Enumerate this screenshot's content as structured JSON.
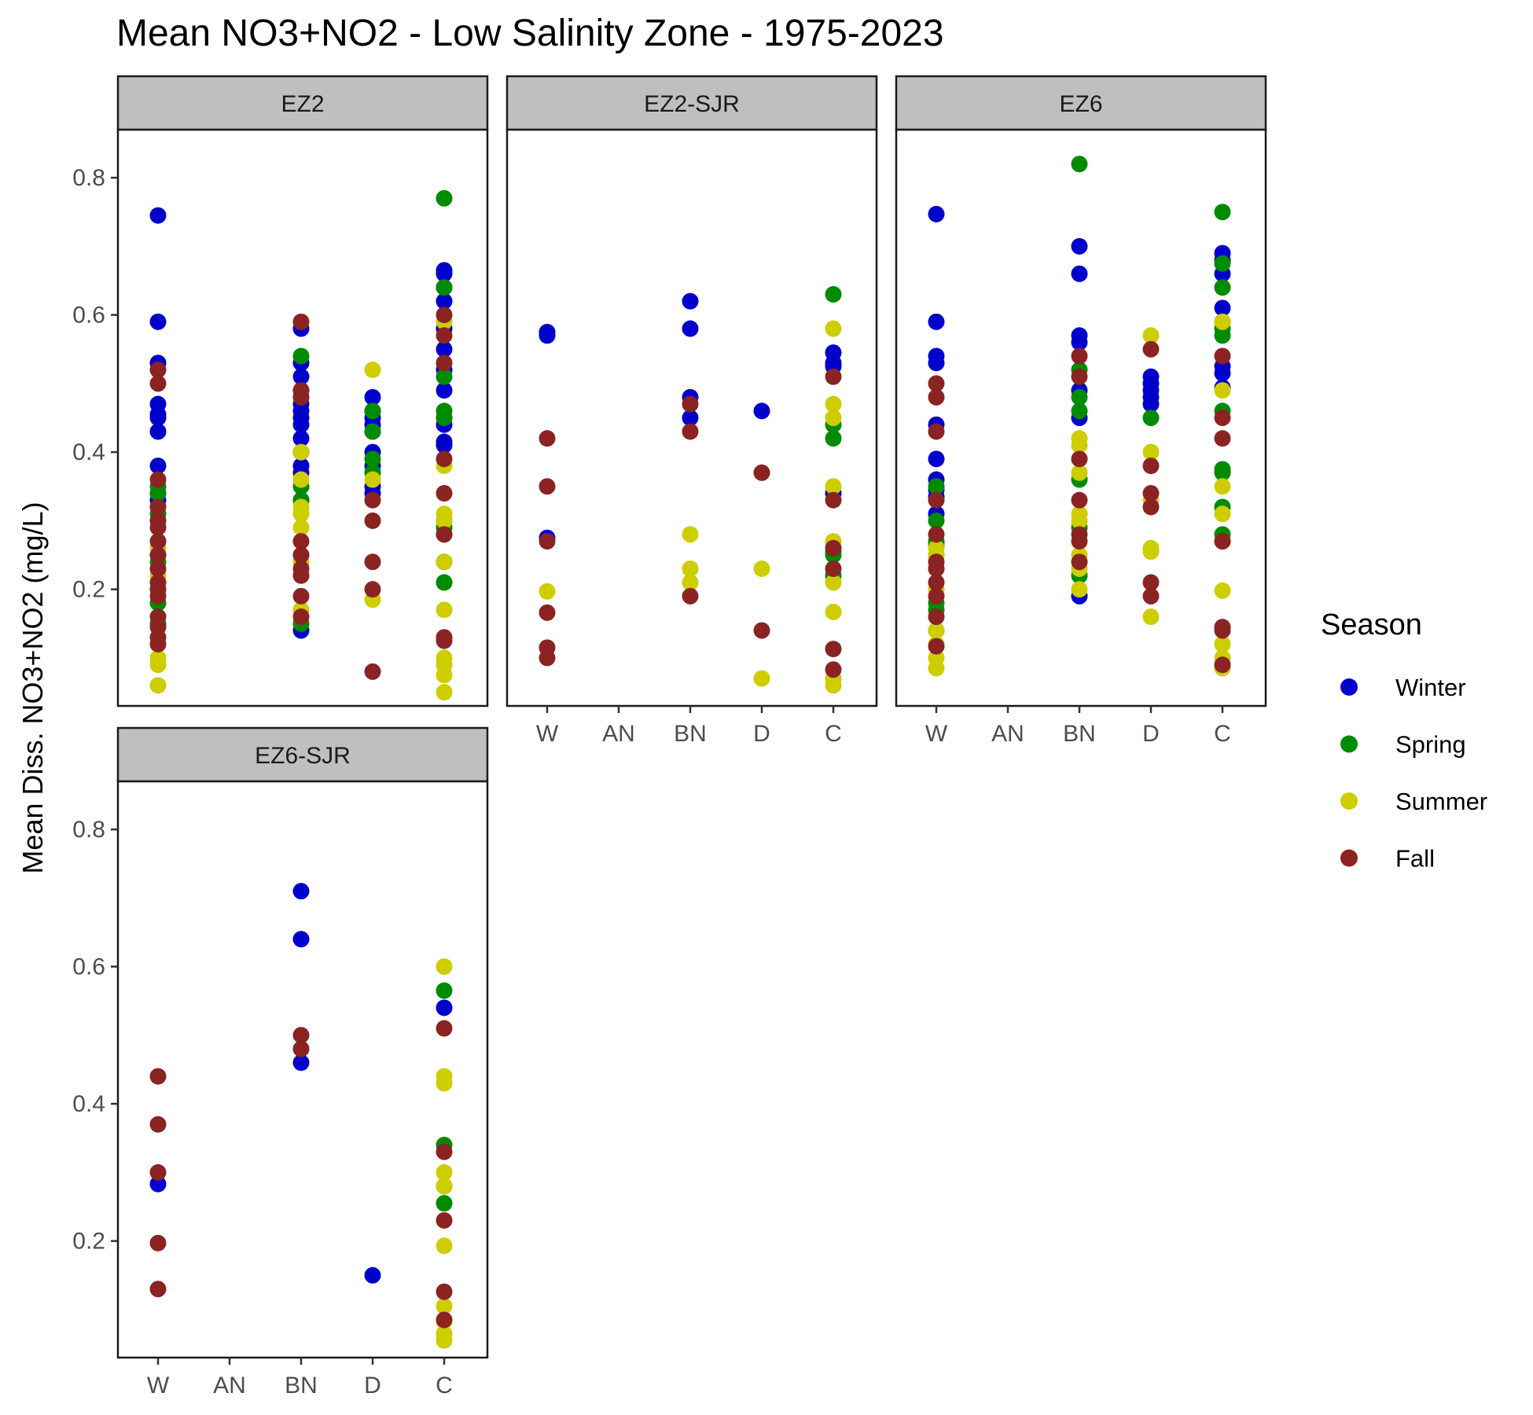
{
  "chart_data": {
    "type": "scatter",
    "title": "Mean NO3+NO2 - Low Salinity Zone - 1975-2023",
    "ylabel": "Mean Diss. NO3+NO2 (mg/L)",
    "xlabel": "",
    "categories": [
      "W",
      "AN",
      "BN",
      "D",
      "C"
    ],
    "yticks": [
      0.2,
      0.4,
      0.6,
      0.8
    ],
    "ylim": [
      0.03,
      0.87
    ],
    "grid": false,
    "legend": {
      "title": "Season",
      "position": "right",
      "entries": [
        {
          "name": "Winter",
          "color": "#0000CD"
        },
        {
          "name": "Spring",
          "color": "#008B00"
        },
        {
          "name": "Summer",
          "color": "#CDCD00"
        },
        {
          "name": "Fall",
          "color": "#8B2323"
        }
      ]
    },
    "panels": [
      {
        "name": "EZ2",
        "series": [
          {
            "name": "Winter",
            "points": {
              "W": [
                0.745,
                0.59,
                0.53,
                0.52,
                0.47,
                0.455,
                0.45,
                0.43,
                0.38,
                0.34,
                0.33
              ],
              "BN": [
                0.58,
                0.53,
                0.51,
                0.49,
                0.47,
                0.46,
                0.45,
                0.44,
                0.42,
                0.4,
                0.38,
                0.37,
                0.33,
                0.14
              ],
              "D": [
                0.48,
                0.46,
                0.45,
                0.44,
                0.43,
                0.4,
                0.38,
                0.35,
                0.34
              ],
              "C": [
                0.665,
                0.66,
                0.64,
                0.62,
                0.58,
                0.55,
                0.52,
                0.49,
                0.45,
                0.44,
                0.415,
                0.41
              ]
            }
          },
          {
            "name": "Spring",
            "points": {
              "W": [
                0.35,
                0.34,
                0.31,
                0.3,
                0.25,
                0.24,
                0.2,
                0.18,
                0.15
              ],
              "BN": [
                0.54,
                0.48,
                0.35,
                0.33,
                0.25,
                0.15
              ],
              "D": [
                0.46,
                0.43,
                0.39,
                0.37
              ],
              "C": [
                0.77,
                0.64,
                0.51,
                0.46,
                0.45,
                0.3,
                0.29,
                0.28,
                0.24,
                0.21
              ]
            }
          },
          {
            "name": "Summer",
            "points": {
              "W": [
                0.26,
                0.22,
                0.21,
                0.12,
                0.1,
                0.09,
                0.06
              ],
              "BN": [
                0.4,
                0.36,
                0.32,
                0.31,
                0.29,
                0.25,
                0.24,
                0.17,
                0.16
              ],
              "D": [
                0.52,
                0.36,
                0.185
              ],
              "C": [
                0.59,
                0.38,
                0.31,
                0.3,
                0.24,
                0.17,
                0.1,
                0.09,
                0.075,
                0.05
              ]
            }
          },
          {
            "name": "Fall",
            "points": {
              "W": [
                0.52,
                0.5,
                0.36,
                0.32,
                0.3,
                0.29,
                0.27,
                0.25,
                0.23,
                0.21,
                0.2,
                0.19,
                0.16,
                0.145,
                0.13,
                0.12
              ],
              "BN": [
                0.59,
                0.49,
                0.48,
                0.27,
                0.25,
                0.23,
                0.22,
                0.19,
                0.16
              ],
              "D": [
                0.33,
                0.3,
                0.24,
                0.2,
                0.08
              ],
              "C": [
                0.6,
                0.57,
                0.53,
                0.39,
                0.34,
                0.28,
                0.13,
                0.125
              ]
            }
          }
        ]
      },
      {
        "name": "EZ2-SJR",
        "series": [
          {
            "name": "Winter",
            "points": {
              "W": [
                0.575,
                0.57,
                0.275
              ],
              "BN": [
                0.62,
                0.58,
                0.48,
                0.45
              ],
              "D": [
                0.46
              ],
              "C": [
                0.545,
                0.53,
                0.525,
                0.34
              ]
            }
          },
          {
            "name": "Spring",
            "points": {
              "C": [
                0.63,
                0.44,
                0.42,
                0.255,
                0.25,
                0.22
              ]
            }
          },
          {
            "name": "Summer",
            "points": {
              "W": [
                0.197
              ],
              "BN": [
                0.28,
                0.23,
                0.21
              ],
              "D": [
                0.37,
                0.23,
                0.07
              ],
              "C": [
                0.58,
                0.47,
                0.45,
                0.35,
                0.27,
                0.21,
                0.167,
                0.07,
                0.06
              ]
            }
          },
          {
            "name": "Fall",
            "points": {
              "W": [
                0.42,
                0.35,
                0.27,
                0.166,
                0.115,
                0.1
              ],
              "BN": [
                0.47,
                0.43,
                0.19
              ],
              "D": [
                0.37,
                0.14
              ],
              "C": [
                0.51,
                0.33,
                0.26,
                0.23,
                0.113,
                0.083
              ]
            }
          }
        ]
      },
      {
        "name": "EZ6",
        "series": [
          {
            "name": "Winter",
            "points": {
              "W": [
                0.747,
                0.59,
                0.54,
                0.53,
                0.44,
                0.39,
                0.36,
                0.345,
                0.335,
                0.31
              ],
              "BN": [
                0.7,
                0.66,
                0.57,
                0.56,
                0.49,
                0.45,
                0.19
              ],
              "D": [
                0.51,
                0.5,
                0.49,
                0.48,
                0.47
              ],
              "C": [
                0.69,
                0.68,
                0.66,
                0.61,
                0.59,
                0.525,
                0.515,
                0.494
              ]
            }
          },
          {
            "name": "Spring",
            "points": {
              "W": [
                0.35,
                0.3,
                0.27,
                0.265,
                0.25,
                0.18,
                0.17,
                0.14
              ],
              "BN": [
                0.82,
                0.52,
                0.48,
                0.46,
                0.36,
                0.29,
                0.22
              ],
              "D": [
                0.45
              ],
              "C": [
                0.75,
                0.675,
                0.64,
                0.58,
                0.57,
                0.46,
                0.375,
                0.37,
                0.32,
                0.28,
                0.27
              ]
            }
          },
          {
            "name": "Summer",
            "points": {
              "W": [
                0.26,
                0.25,
                0.23,
                0.2,
                0.14,
                0.12,
                0.1,
                0.085
              ],
              "BN": [
                0.42,
                0.41,
                0.39,
                0.37,
                0.31,
                0.3,
                0.25,
                0.23,
                0.2
              ],
              "D": [
                0.57,
                0.4,
                0.33,
                0.26,
                0.255,
                0.16
              ],
              "C": [
                0.59,
                0.49,
                0.35,
                0.31,
                0.198,
                0.12,
                0.1,
                0.085
              ]
            }
          },
          {
            "name": "Fall",
            "points": {
              "W": [
                0.5,
                0.48,
                0.43,
                0.33,
                0.28,
                0.24,
                0.23,
                0.21,
                0.19,
                0.16,
                0.117
              ],
              "BN": [
                0.54,
                0.51,
                0.39,
                0.33,
                0.28,
                0.27,
                0.24
              ],
              "D": [
                0.55,
                0.38,
                0.34,
                0.32,
                0.21,
                0.19
              ],
              "C": [
                0.54,
                0.45,
                0.42,
                0.27,
                0.145,
                0.14,
                0.09
              ]
            }
          }
        ]
      },
      {
        "name": "EZ6-SJR",
        "series": [
          {
            "name": "Winter",
            "points": {
              "W": [
                0.283
              ],
              "BN": [
                0.71,
                0.64,
                0.46
              ],
              "D": [
                0.15
              ],
              "C": [
                0.54
              ]
            }
          },
          {
            "name": "Spring",
            "points": {
              "C": [
                0.565,
                0.34,
                0.28,
                0.255
              ]
            }
          },
          {
            "name": "Summer",
            "points": {
              "C": [
                0.6,
                0.44,
                0.43,
                0.3,
                0.28,
                0.193,
                0.105,
                0.083,
                0.065,
                0.055
              ]
            }
          },
          {
            "name": "Fall",
            "points": {
              "W": [
                0.44,
                0.37,
                0.3,
                0.197,
                0.13
              ],
              "BN": [
                0.5,
                0.48
              ],
              "C": [
                0.51,
                0.33,
                0.23,
                0.126,
                0.085
              ]
            }
          }
        ]
      }
    ]
  }
}
